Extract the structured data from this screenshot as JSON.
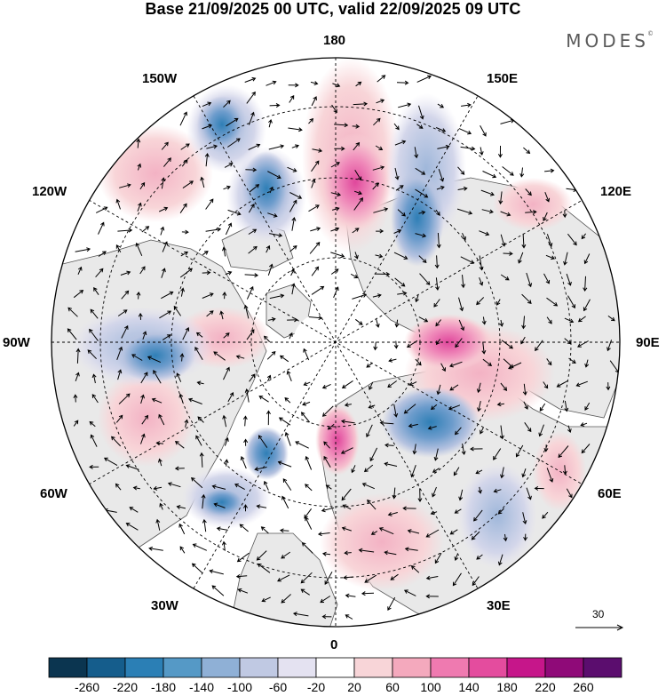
{
  "title": "Base 21/09/2025 00 UTC, valid 22/09/2025 09 UTC",
  "brand": "MODES",
  "brand_mark": "©",
  "longitudes": {
    "top": "180",
    "bottom": "0",
    "left": "90W",
    "right": "90E",
    "upper_left_1": "150W",
    "upper_left_2": "120W",
    "lower_left_1": "60W",
    "lower_left_2": "30W",
    "upper_right_1": "150E",
    "upper_right_2": "120E",
    "lower_right_1": "60E",
    "lower_right_2": "30E"
  },
  "vector_reference": "30",
  "colorbar": {
    "ticks": [
      "-260",
      "-220",
      "-180",
      "-140",
      "-100",
      "-60",
      "-20",
      "20",
      "60",
      "100",
      "140",
      "180",
      "220",
      "260"
    ],
    "colors": [
      "#0b3550",
      "#155d8c",
      "#2b7fb5",
      "#5599c6",
      "#8fb0d6",
      "#c0c9e3",
      "#e4e2f1",
      "#ffffff",
      "#f8d5d8",
      "#f4a9bd",
      "#ef7ab0",
      "#e44c9e",
      "#c6168a",
      "#8f0a78",
      "#5b0d6e"
    ]
  }
}
